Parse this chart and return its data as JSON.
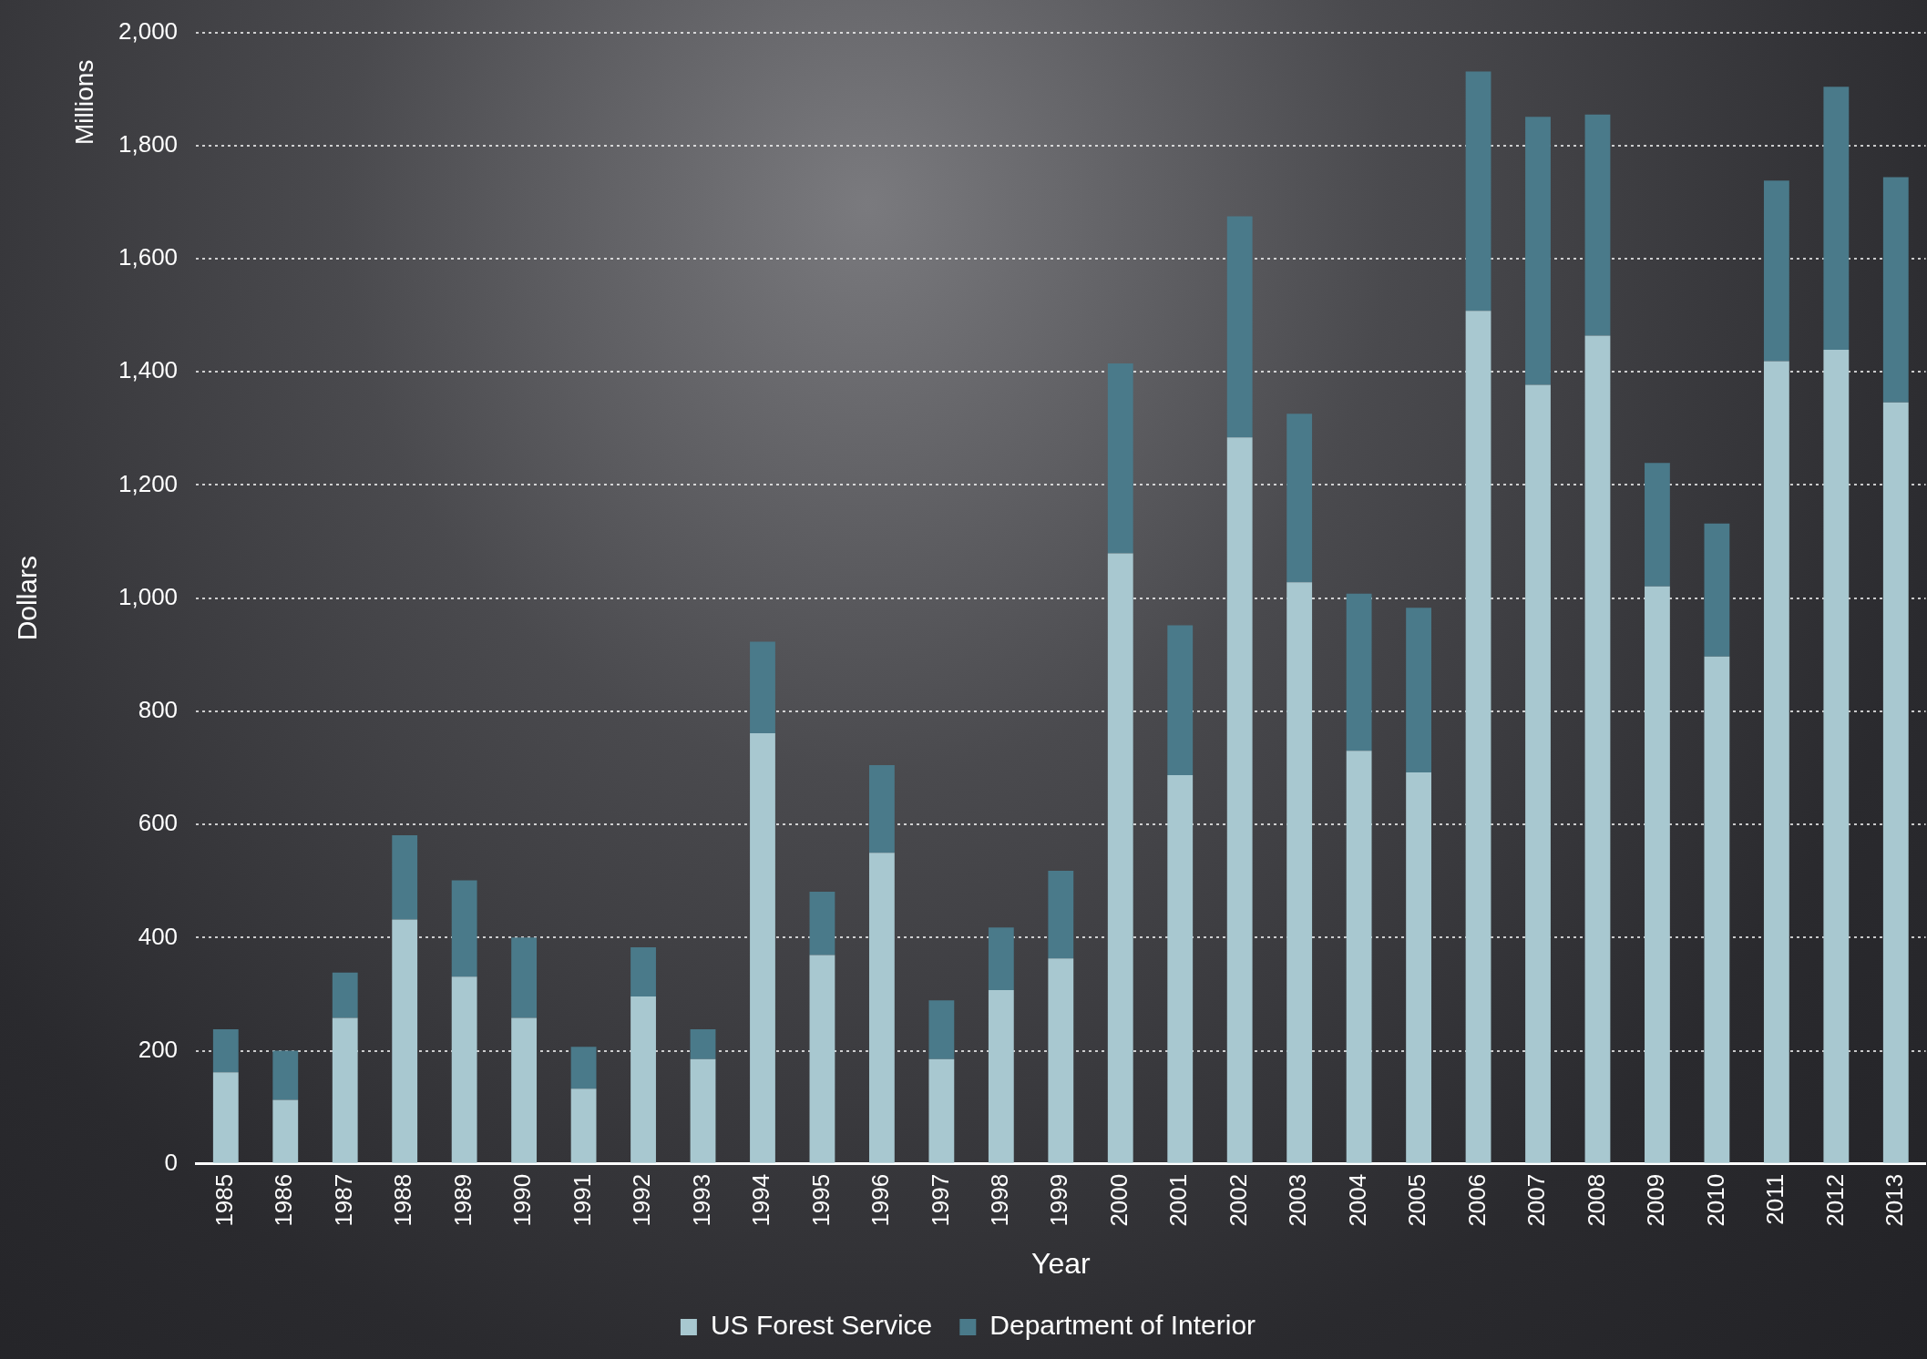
{
  "chart_data": {
    "type": "bar",
    "stacked": true,
    "xlabel": "Year",
    "ylabel": "Dollars",
    "annotations": [
      "Millions"
    ],
    "categories": [
      "1985",
      "1986",
      "1987",
      "1988",
      "1989",
      "1990",
      "1991",
      "1992",
      "1993",
      "1994",
      "1995",
      "1996",
      "1997",
      "1998",
      "1999",
      "2000",
      "2001",
      "2002",
      "2003",
      "2004",
      "2005",
      "2006",
      "2007",
      "2008",
      "2009",
      "2010",
      "2011",
      "2012",
      "2013"
    ],
    "series": [
      {
        "name": "US Forest Service",
        "color": "#a8c8d0",
        "values": [
          162,
          113,
          258,
          432,
          331,
          258,
          133,
          296,
          185,
          761,
          369,
          550,
          185,
          307,
          363,
          1079,
          687,
          1284,
          1028,
          730,
          692,
          1508,
          1377,
          1464,
          1021,
          897,
          1419,
          1439,
          1346
        ]
      },
      {
        "name": "Department of Interior",
        "color": "#4a7a8a",
        "values": [
          76,
          87,
          80,
          149,
          170,
          142,
          74,
          87,
          53,
          162,
          112,
          155,
          104,
          111,
          155,
          336,
          265,
          391,
          298,
          278,
          291,
          423,
          474,
          391,
          218,
          235,
          319,
          465,
          398
        ]
      }
    ],
    "ylim": [
      0,
      2000
    ],
    "yticks": [
      0,
      200,
      400,
      600,
      800,
      {
        "value": 1000,
        "label": "1,000"
      },
      {
        "value": 1200,
        "label": "1,200"
      },
      {
        "value": 1400,
        "label": "1,400"
      },
      {
        "value": 1600,
        "label": "1,600"
      },
      {
        "value": 1800,
        "label": "1,800"
      },
      {
        "value": 2000,
        "label": "2,000"
      }
    ],
    "grid": "y",
    "legend": "bottom"
  }
}
